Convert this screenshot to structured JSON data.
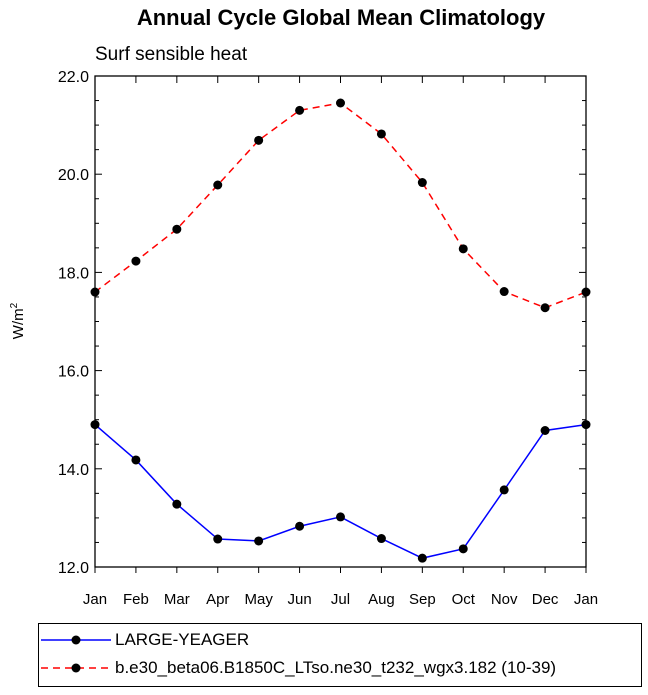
{
  "chart_data": {
    "type": "line",
    "title": "Annual Cycle Global Mean Climatology",
    "subtitle": "Surf sensible heat",
    "ylabel_base": "W/m",
    "ylabel_sup": "2",
    "xlabel": "",
    "ylim": [
      12.0,
      22.0
    ],
    "yticks": [
      12.0,
      14.0,
      16.0,
      18.0,
      20.0,
      22.0
    ],
    "ytick_labels": [
      "12.0",
      "14.0",
      "16.0",
      "18.0",
      "20.0",
      "22.0"
    ],
    "categories": [
      "Jan",
      "Feb",
      "Mar",
      "Apr",
      "May",
      "Jun",
      "Jul",
      "Aug",
      "Sep",
      "Oct",
      "Nov",
      "Dec",
      "Jan"
    ],
    "series": [
      {
        "name": "LARGE-YEAGER",
        "color": "#0000ff",
        "dash": "solid",
        "values": [
          14.9,
          14.18,
          13.28,
          12.57,
          12.53,
          12.83,
          13.02,
          12.58,
          12.18,
          12.37,
          13.57,
          14.78,
          14.9
        ]
      },
      {
        "name": "b.e30_beta06.B1850C_LTso.ne30_t232_wgx3.182 (10-39)",
        "color": "#ff0000",
        "dash": "dashed",
        "values": [
          17.6,
          18.23,
          18.88,
          19.78,
          20.69,
          21.3,
          21.45,
          20.82,
          19.83,
          18.48,
          17.61,
          17.28,
          17.6
        ]
      }
    ],
    "legend_position": "bottom"
  }
}
